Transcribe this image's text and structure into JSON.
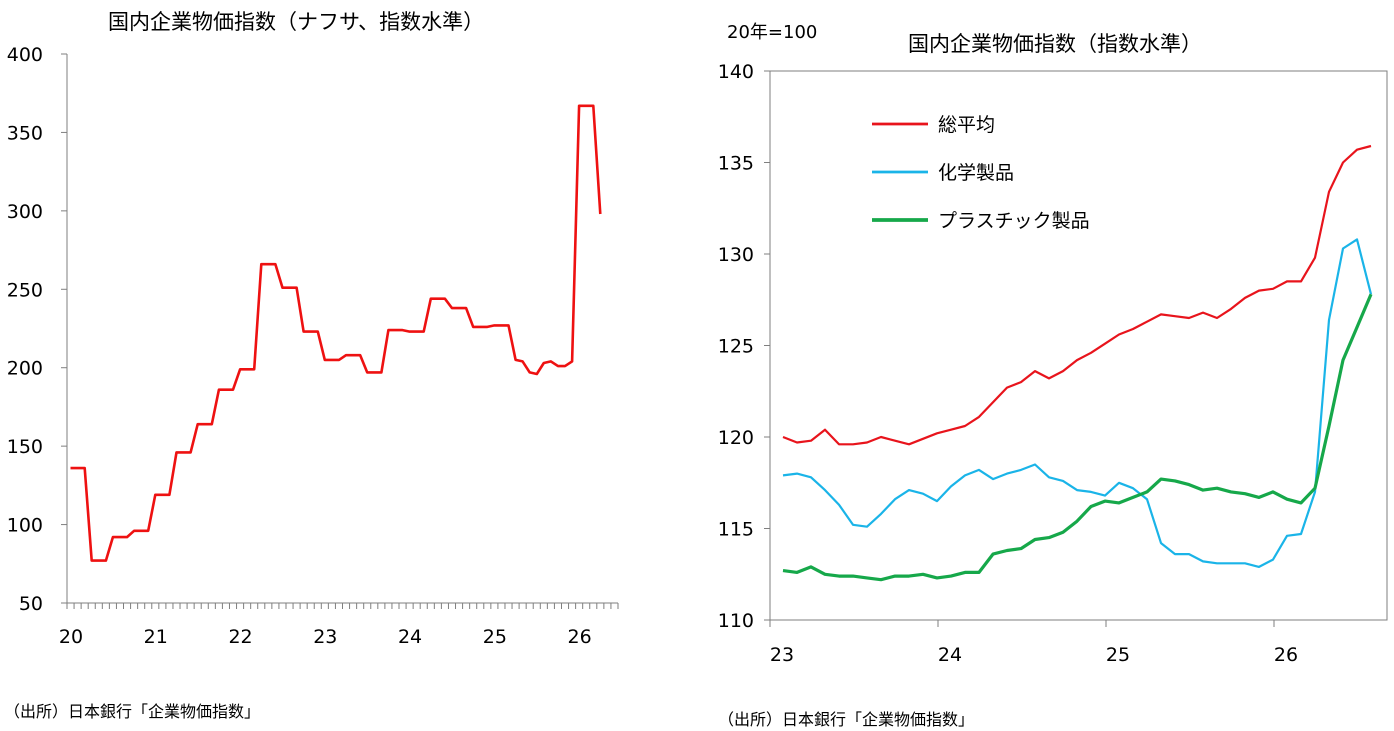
{
  "charts": [
    {
      "id": "left",
      "title": "国内企業物価指数（ナフサ、指数水準）",
      "source": "（出所）日本銀行「企業物価指数」",
      "unit_note": "",
      "chart_data": {
        "type": "line",
        "title": "国内企業物価指数（ナフサ、指数水準）",
        "xlabel": "",
        "ylabel": "",
        "ylim": [
          50,
          400
        ],
        "yticks": [
          50,
          100,
          150,
          200,
          250,
          300,
          350,
          400
        ],
        "x_tick_labels": [
          "20",
          "21",
          "22",
          "23",
          "24",
          "25",
          "26"
        ],
        "x_start_month": "2020-01",
        "legend": "none",
        "grid": false,
        "series": [
          {
            "name": "",
            "color": "#ee1111",
            "values": [
              136,
              136,
              136,
              77,
              77,
              77,
              92,
              92,
              92,
              96,
              96,
              96,
              119,
              119,
              119,
              146,
              146,
              146,
              164,
              164,
              164,
              186,
              186,
              186,
              199,
              199,
              199,
              266,
              266,
              266,
              251,
              251,
              251,
              223,
              223,
              223,
              205,
              205,
              205,
              208,
              208,
              208,
              197,
              197,
              197,
              224,
              224,
              224,
              223,
              223,
              223,
              244,
              244,
              244,
              238,
              238,
              238,
              226,
              226,
              226,
              227,
              227,
              227,
              205,
              204,
              197,
              196,
              203,
              204,
              201,
              201,
              204,
              367,
              367,
              367,
              298
            ]
          }
        ]
      }
    },
    {
      "id": "right",
      "title": "国内企業物価指数（指数水準）",
      "source": "（出所）日本銀行「企業物価指数」",
      "unit_note": "20年=100",
      "chart_data": {
        "type": "line",
        "title": "国内企業物価指数（指数水準）",
        "xlabel": "",
        "ylabel": "",
        "ylim": [
          110,
          140
        ],
        "yticks": [
          110,
          115,
          120,
          125,
          130,
          135,
          140
        ],
        "x_tick_labels": [
          "23",
          "24",
          "25",
          "26"
        ],
        "x_start_month": "2023-01",
        "legend": "top-left",
        "grid": false,
        "series": [
          {
            "name": "総平均",
            "color": "#e8141c",
            "width": 2.2,
            "values": [
              120.0,
              119.7,
              119.8,
              120.4,
              119.6,
              119.6,
              119.7,
              120.0,
              119.8,
              119.6,
              119.9,
              120.2,
              120.4,
              120.6,
              121.1,
              121.9,
              122.7,
              123.0,
              123.6,
              123.2,
              123.6,
              124.2,
              124.6,
              125.1,
              125.6,
              125.9,
              126.3,
              126.7,
              126.6,
              126.5,
              126.8,
              126.5,
              127.0,
              127.6,
              128.0,
              128.1,
              128.5,
              128.5,
              129.8,
              133.4,
              135.0,
              135.7,
              135.9
            ]
          },
          {
            "name": "化学製品",
            "color": "#1ab4e8",
            "width": 2.2,
            "values": [
              117.9,
              118.0,
              117.8,
              117.1,
              116.3,
              115.2,
              115.1,
              115.8,
              116.6,
              117.1,
              116.9,
              116.5,
              117.3,
              117.9,
              118.2,
              117.7,
              118.0,
              118.2,
              118.5,
              117.8,
              117.6,
              117.1,
              117.0,
              116.8,
              117.5,
              117.2,
              116.6,
              114.2,
              113.6,
              113.6,
              113.2,
              113.1,
              113.1,
              113.1,
              112.9,
              113.3,
              114.6,
              114.7,
              117.0,
              126.4,
              130.3,
              130.8,
              127.8
            ]
          },
          {
            "name": "プラスチック製品",
            "color": "#16a84a",
            "width": 3.2,
            "values": [
              112.7,
              112.6,
              112.9,
              112.5,
              112.4,
              112.4,
              112.3,
              112.2,
              112.4,
              112.4,
              112.5,
              112.3,
              112.4,
              112.6,
              112.6,
              113.6,
              113.8,
              113.9,
              114.4,
              114.5,
              114.8,
              115.4,
              116.2,
              116.5,
              116.4,
              116.7,
              117.0,
              117.7,
              117.6,
              117.4,
              117.1,
              117.2,
              117.0,
              116.9,
              116.7,
              117.0,
              116.6,
              116.4,
              117.2,
              120.6,
              124.2,
              126.0,
              127.8
            ]
          }
        ]
      }
    }
  ]
}
